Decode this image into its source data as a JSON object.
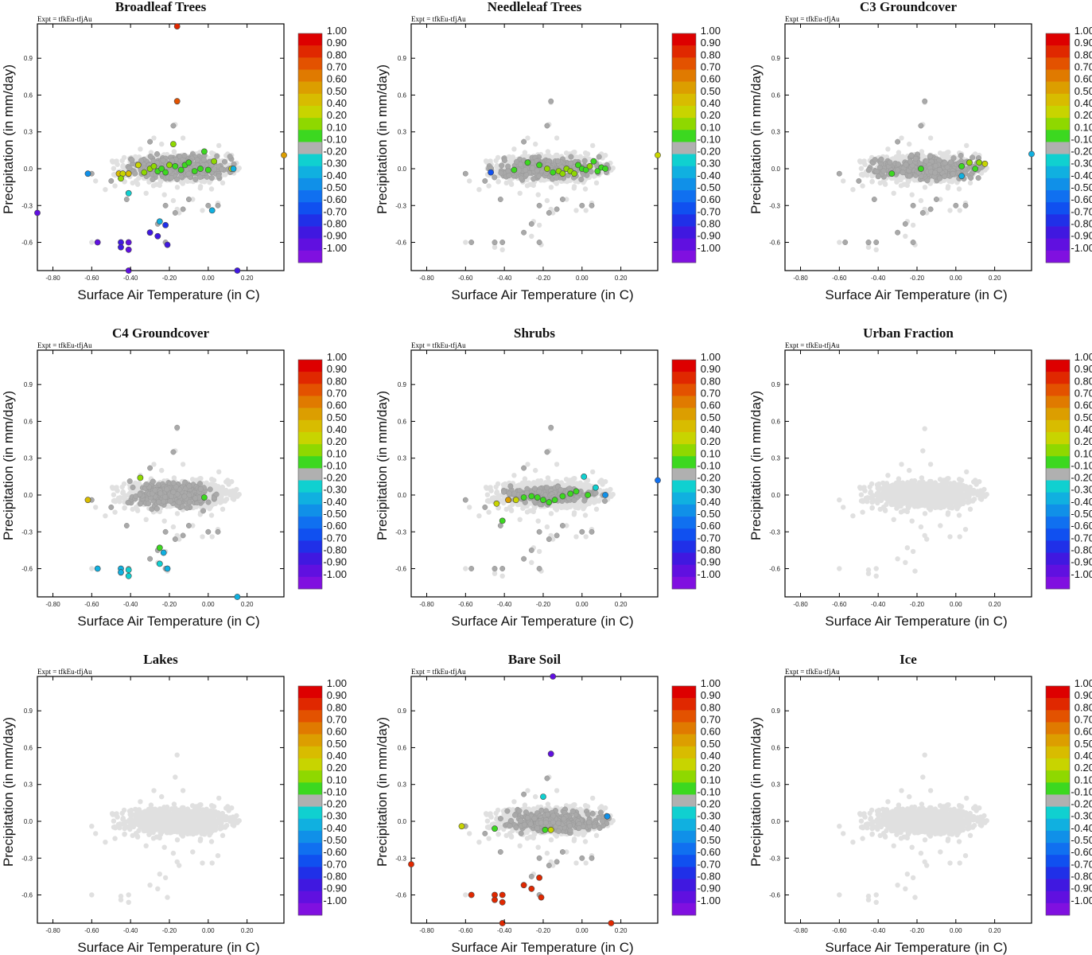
{
  "figure": {
    "expt_label": "Expt = tfkEu-tfjAu",
    "xlabel": "Surface Air Temperature (in C)",
    "ylabel": "Precipitation (in mm/day)",
    "x_ticks": [
      "-0.80",
      "-0.60",
      "-0.40",
      "-0.20",
      "0.00",
      "0.20"
    ],
    "x_tick_values": [
      -0.8,
      -0.6,
      -0.4,
      -0.2,
      0.0,
      0.2
    ],
    "y_ticks": [
      "0.9",
      "0.6",
      "0.3",
      "0.0",
      "-0.3",
      "-0.6"
    ],
    "y_tick_values": [
      0.9,
      0.6,
      0.3,
      0.0,
      -0.3,
      -0.6
    ],
    "xlim": [
      -0.88,
      0.39
    ],
    "ylim": [
      -0.83,
      1.18
    ],
    "colorbar": {
      "labels": [
        "1.00",
        "0.90",
        "0.80",
        "0.70",
        "0.60",
        "0.50",
        "0.40",
        "0.20",
        "0.10",
        "-0.10",
        "-0.20",
        "-0.30",
        "-0.40",
        "-0.50",
        "-0.60",
        "-0.70",
        "-0.80",
        "-0.90",
        "-1.00"
      ],
      "colors": [
        "#dd0000",
        "#e02800",
        "#e35200",
        "#e07a00",
        "#dc9e00",
        "#d8bc00",
        "#c8d400",
        "#8fd800",
        "#3cd820",
        "#b0b0b0",
        "#10d0d0",
        "#10b0e0",
        "#1090e8",
        "#1070f0",
        "#1050f0",
        "#2030e8",
        "#4018e0",
        "#6010e0",
        "#8010e0"
      ],
      "value_range": [
        -1.0,
        1.0
      ]
    },
    "background_point_colors": {
      "light": "#e0e0e0",
      "dark": "#a9a9a9"
    }
  },
  "panels": [
    {
      "title": "Broadleaf Trees",
      "n_dark": 420,
      "dark_box": [
        -0.42,
        0.14,
        -0.09,
        0.12
      ],
      "points": [
        [
          -0.16,
          1.16,
          0.95
        ],
        [
          -0.16,
          0.55,
          0.85
        ],
        [
          -0.62,
          -0.04,
          -0.4
        ],
        [
          -0.46,
          -0.04,
          0.45
        ],
        [
          -0.44,
          -0.04,
          0.4
        ],
        [
          -0.41,
          -0.04,
          0.45
        ],
        [
          -0.45,
          -0.08,
          0.2
        ],
        [
          -0.41,
          -0.2,
          -0.25
        ],
        [
          -0.36,
          0.03,
          0.35
        ],
        [
          -0.33,
          -0.03,
          0.3
        ],
        [
          -0.3,
          0.0,
          0.2
        ],
        [
          -0.28,
          0.02,
          0.25
        ],
        [
          -0.26,
          -0.02,
          0.15
        ],
        [
          -0.24,
          0.0,
          0.15
        ],
        [
          -0.22,
          -0.03,
          0.15
        ],
        [
          -0.2,
          0.03,
          0.2
        ],
        [
          -0.18,
          0.2,
          0.2
        ],
        [
          -0.17,
          0.02,
          0.15
        ],
        [
          -0.14,
          -0.01,
          0.15
        ],
        [
          -0.12,
          0.03,
          0.15
        ],
        [
          -0.1,
          0.05,
          0.15
        ],
        [
          -0.07,
          -0.02,
          0.15
        ],
        [
          -0.04,
          0.0,
          0.15
        ],
        [
          -0.02,
          0.14,
          0.15
        ],
        [
          0.0,
          -0.01,
          0.15
        ],
        [
          0.03,
          0.06,
          0.3
        ],
        [
          0.12,
          0.0,
          0.4
        ],
        [
          0.13,
          0.0,
          -0.3
        ],
        [
          0.02,
          -0.34,
          -0.3
        ],
        [
          -0.25,
          -0.43,
          -0.3
        ],
        [
          -0.3,
          -0.52,
          -0.8
        ],
        [
          -0.26,
          -0.55,
          -0.8
        ],
        [
          -0.22,
          -0.46,
          -0.7
        ],
        [
          -0.21,
          -0.62,
          -0.8
        ],
        [
          -0.41,
          -0.6,
          -0.9
        ],
        [
          -0.41,
          -0.66,
          -0.9
        ],
        [
          -0.45,
          -0.6,
          -0.85
        ],
        [
          -0.45,
          -0.64,
          -0.85
        ],
        [
          -0.57,
          -0.6,
          -0.9
        ],
        [
          -0.41,
          -0.83,
          -0.9
        ],
        [
          -0.88,
          -0.36,
          -0.95
        ],
        [
          0.15,
          -0.83,
          -0.85
        ],
        [
          0.39,
          0.11,
          0.6
        ]
      ]
    },
    {
      "title": "Needleleaf Trees",
      "n_dark": 280,
      "dark_box": [
        -0.48,
        0.14,
        -0.1,
        0.1
      ],
      "points": [
        [
          -0.47,
          -0.03,
          -0.55
        ],
        [
          -0.35,
          -0.01,
          0.1
        ],
        [
          -0.28,
          0.05,
          0.15
        ],
        [
          -0.22,
          0.03,
          0.15
        ],
        [
          -0.18,
          0.0,
          0.2
        ],
        [
          -0.15,
          -0.03,
          0.15
        ],
        [
          -0.12,
          -0.02,
          0.2
        ],
        [
          -0.1,
          -0.04,
          0.25
        ],
        [
          -0.08,
          0.0,
          0.3
        ],
        [
          -0.06,
          -0.02,
          0.2
        ],
        [
          -0.04,
          -0.04,
          0.2
        ],
        [
          -0.02,
          0.03,
          0.15
        ],
        [
          0.0,
          0.0,
          0.15
        ],
        [
          0.02,
          -0.01,
          0.15
        ],
        [
          0.04,
          0.02,
          0.2
        ],
        [
          0.06,
          0.06,
          0.15
        ],
        [
          0.08,
          -0.02,
          0.15
        ],
        [
          0.1,
          0.01,
          0.15
        ],
        [
          0.12,
          0.0,
          0.15
        ],
        [
          0.39,
          0.11,
          0.35
        ]
      ]
    },
    {
      "title": "C3 Groundcover",
      "n_dark": 330,
      "dark_box": [
        -0.45,
        0.14,
        -0.1,
        0.12
      ],
      "points": [
        [
          -0.33,
          -0.04,
          0.15
        ],
        [
          -0.18,
          0.0,
          0.15
        ],
        [
          0.03,
          -0.06,
          -0.3
        ],
        [
          0.07,
          0.05,
          0.2
        ],
        [
          0.03,
          0.02,
          0.15
        ],
        [
          0.1,
          0.0,
          0.15
        ],
        [
          0.12,
          0.05,
          0.25
        ],
        [
          0.15,
          0.04,
          0.35
        ],
        [
          0.39,
          0.12,
          -0.3
        ]
      ]
    },
    {
      "title": "C4 Groundcover",
      "n_dark": 260,
      "dark_box": [
        -0.42,
        0.05,
        -0.13,
        0.13
      ],
      "points": [
        [
          -0.62,
          -0.04,
          0.45
        ],
        [
          -0.35,
          0.14,
          0.3
        ],
        [
          -0.02,
          -0.02,
          0.15
        ],
        [
          -0.25,
          -0.43,
          0.1
        ],
        [
          -0.23,
          -0.47,
          -0.3
        ],
        [
          -0.25,
          -0.56,
          -0.25
        ],
        [
          -0.21,
          -0.6,
          -0.3
        ],
        [
          -0.41,
          -0.61,
          -0.25
        ],
        [
          -0.41,
          -0.66,
          -0.25
        ],
        [
          -0.45,
          -0.6,
          -0.3
        ],
        [
          -0.45,
          -0.63,
          -0.3
        ],
        [
          -0.57,
          -0.6,
          -0.3
        ],
        [
          0.15,
          -0.83,
          -0.3
        ]
      ]
    },
    {
      "title": "Shrubs",
      "n_dark": 230,
      "dark_box": [
        -0.42,
        0.12,
        -0.08,
        0.08
      ],
      "points": [
        [
          -0.44,
          -0.07,
          0.35
        ],
        [
          -0.41,
          -0.21,
          0.15
        ],
        [
          -0.38,
          -0.04,
          0.6
        ],
        [
          -0.34,
          -0.04,
          0.4
        ],
        [
          -0.3,
          -0.02,
          0.15
        ],
        [
          -0.26,
          -0.01,
          0.15
        ],
        [
          -0.23,
          -0.02,
          0.1
        ],
        [
          -0.2,
          -0.04,
          0.15
        ],
        [
          -0.17,
          -0.06,
          0.15
        ],
        [
          -0.14,
          -0.04,
          0.15
        ],
        [
          -0.1,
          -0.01,
          0.15
        ],
        [
          -0.06,
          0.01,
          0.15
        ],
        [
          -0.03,
          0.03,
          0.15
        ],
        [
          0.01,
          0.15,
          -0.25
        ],
        [
          0.07,
          0.06,
          -0.25
        ],
        [
          0.03,
          0.0,
          0.15
        ],
        [
          0.12,
          0.0,
          -0.4
        ],
        [
          0.39,
          0.12,
          -0.5
        ]
      ]
    },
    {
      "title": "Urban Fraction",
      "n_dark": 0,
      "dark_box": [
        0,
        0,
        0,
        0
      ],
      "points": []
    },
    {
      "title": "Lakes",
      "n_dark": 0,
      "dark_box": [
        0,
        0,
        0,
        0
      ],
      "points": []
    },
    {
      "title": "Bare Soil",
      "n_dark": 300,
      "dark_box": [
        -0.42,
        0.14,
        -0.1,
        0.1
      ],
      "points": [
        [
          -0.15,
          1.18,
          -0.9
        ],
        [
          -0.16,
          0.55,
          -0.9
        ],
        [
          -0.62,
          -0.04,
          0.35
        ],
        [
          -0.45,
          -0.06,
          0.15
        ],
        [
          -0.19,
          -0.07,
          0.15
        ],
        [
          -0.16,
          -0.07,
          0.35
        ],
        [
          -0.2,
          0.2,
          -0.25
        ],
        [
          0.13,
          0.04,
          -0.4
        ],
        [
          -0.88,
          -0.35,
          0.9
        ],
        [
          -0.57,
          -0.6,
          0.95
        ],
        [
          -0.45,
          -0.6,
          0.95
        ],
        [
          -0.45,
          -0.64,
          0.9
        ],
        [
          -0.41,
          -0.6,
          0.95
        ],
        [
          -0.41,
          -0.66,
          0.9
        ],
        [
          -0.3,
          -0.52,
          0.9
        ],
        [
          -0.26,
          -0.55,
          0.9
        ],
        [
          -0.22,
          -0.46,
          0.9
        ],
        [
          -0.21,
          -0.62,
          0.9
        ],
        [
          -0.41,
          -0.83,
          0.9
        ],
        [
          0.15,
          -0.83,
          0.9
        ]
      ]
    },
    {
      "title": "Ice",
      "n_dark": 0,
      "dark_box": [
        0,
        0,
        0,
        0
      ],
      "points": []
    }
  ]
}
